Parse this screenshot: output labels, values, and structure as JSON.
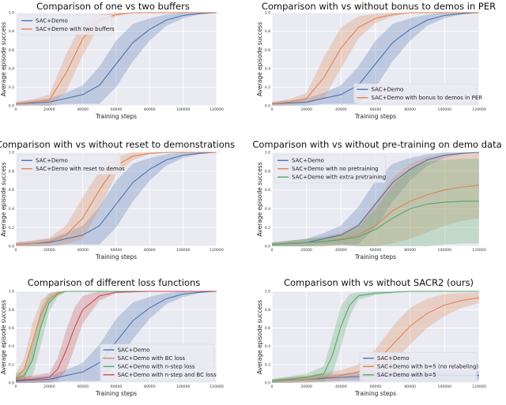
{
  "chart_data": [
    {
      "type": "line",
      "title": "Comparison of one vs two buffers",
      "xlabel": "Training steps",
      "ylabel": "Average episode success",
      "xlim": [
        0,
        120000
      ],
      "ylim": [
        0,
        1
      ],
      "xticks": [
        0,
        20000,
        40000,
        60000,
        80000,
        100000,
        120000
      ],
      "xtick_labels": [
        "0",
        "20000",
        "40000",
        "60000",
        "80000",
        "100000",
        "120000"
      ],
      "yticks": [
        0,
        0.2,
        0.4,
        0.6,
        0.8,
        1.0
      ],
      "ytick_labels": [
        "0.0",
        "0.2",
        "0.4",
        "0.6",
        "0.8",
        "1.0"
      ],
      "legend": "top-left",
      "series": [
        {
          "name": "SAC+Demo",
          "color": "#4c72b0",
          "x": [
            0,
            10000,
            20000,
            30000,
            40000,
            50000,
            60000,
            70000,
            80000,
            90000,
            100000,
            110000,
            120000
          ],
          "y": [
            0.02,
            0.03,
            0.04,
            0.08,
            0.12,
            0.22,
            0.45,
            0.68,
            0.82,
            0.92,
            0.97,
            0.99,
            1.0
          ],
          "spread": [
            0.02,
            0.03,
            0.04,
            0.06,
            0.1,
            0.2,
            0.25,
            0.2,
            0.12,
            0.06,
            0.03,
            0.01,
            0.0
          ]
        },
        {
          "name": "SAC+Demo with two buffers",
          "color": "#dd8452",
          "x": [
            0,
            10000,
            20000,
            30000,
            40000,
            50000,
            60000,
            70000,
            80000,
            90000,
            100000,
            110000,
            120000
          ],
          "y": [
            0.02,
            0.04,
            0.06,
            0.35,
            0.72,
            0.92,
            0.98,
            1.0,
            1.0,
            1.0,
            1.0,
            1.0,
            1.0
          ],
          "spread": [
            0.02,
            0.03,
            0.06,
            0.2,
            0.18,
            0.06,
            0.02,
            0.0,
            0.0,
            0.0,
            0.0,
            0.0,
            0.0
          ]
        }
      ]
    },
    {
      "type": "line",
      "title": "Comparison with vs without bonus to demos in PER",
      "xlabel": "Training steps",
      "ylabel": "Average episode success",
      "xlim": [
        0,
        120000
      ],
      "ylim": [
        0,
        1
      ],
      "xticks": [
        0,
        20000,
        40000,
        60000,
        80000,
        100000,
        120000
      ],
      "xtick_labels": [
        "0",
        "20000",
        "40000",
        "60000",
        "80000",
        "100000",
        "120000"
      ],
      "yticks": [
        0,
        0.2,
        0.4,
        0.6,
        0.8,
        1.0
      ],
      "ytick_labels": [
        "0.0",
        "0.2",
        "0.4",
        "0.6",
        "0.8",
        "1.0"
      ],
      "legend": "bottom-right",
      "series": [
        {
          "name": "SAC+Demo",
          "color": "#4c72b0",
          "x": [
            0,
            10000,
            20000,
            30000,
            40000,
            50000,
            60000,
            70000,
            80000,
            90000,
            100000,
            110000,
            120000
          ],
          "y": [
            0.02,
            0.03,
            0.04,
            0.08,
            0.12,
            0.22,
            0.45,
            0.68,
            0.82,
            0.92,
            0.97,
            0.99,
            1.0
          ],
          "spread": [
            0.02,
            0.03,
            0.04,
            0.06,
            0.1,
            0.2,
            0.25,
            0.2,
            0.12,
            0.06,
            0.03,
            0.01,
            0.0
          ]
        },
        {
          "name": "SAC+Demo with bonus to demos in PER",
          "color": "#dd8452",
          "x": [
            0,
            10000,
            20000,
            30000,
            40000,
            50000,
            60000,
            70000,
            80000,
            90000,
            100000,
            110000,
            120000
          ],
          "y": [
            0.02,
            0.04,
            0.08,
            0.3,
            0.62,
            0.84,
            0.94,
            0.98,
            1.0,
            1.0,
            1.0,
            1.0,
            1.0
          ],
          "spread": [
            0.02,
            0.03,
            0.06,
            0.22,
            0.22,
            0.12,
            0.05,
            0.02,
            0.0,
            0.0,
            0.0,
            0.0,
            0.0
          ]
        }
      ]
    },
    {
      "type": "line",
      "title": "Comparison with vs without reset to demonstrations",
      "xlabel": "Training steps",
      "ylabel": "Average episode success",
      "xlim": [
        0,
        120000
      ],
      "ylim": [
        0,
        1
      ],
      "xticks": [
        0,
        20000,
        40000,
        60000,
        80000,
        100000,
        120000
      ],
      "xtick_labels": [
        "0",
        "20000",
        "40000",
        "60000",
        "80000",
        "100000",
        "120000"
      ],
      "yticks": [
        0,
        0.2,
        0.4,
        0.6,
        0.8,
        1.0
      ],
      "ytick_labels": [
        "0.0",
        "0.2",
        "0.4",
        "0.6",
        "0.8",
        "1.0"
      ],
      "legend": "top-left",
      "series": [
        {
          "name": "SAC+Demo",
          "color": "#4c72b0",
          "x": [
            0,
            10000,
            20000,
            30000,
            40000,
            50000,
            60000,
            70000,
            80000,
            90000,
            100000,
            110000,
            120000
          ],
          "y": [
            0.02,
            0.03,
            0.04,
            0.08,
            0.12,
            0.22,
            0.45,
            0.68,
            0.82,
            0.92,
            0.97,
            0.99,
            1.0
          ],
          "spread": [
            0.02,
            0.03,
            0.04,
            0.06,
            0.1,
            0.2,
            0.25,
            0.2,
            0.12,
            0.06,
            0.03,
            0.01,
            0.0
          ]
        },
        {
          "name": "SAC+Demo with reset to demos",
          "color": "#dd8452",
          "x": [
            0,
            10000,
            20000,
            30000,
            40000,
            50000,
            60000,
            70000,
            80000,
            90000,
            100000,
            110000,
            120000
          ],
          "y": [
            0.02,
            0.03,
            0.05,
            0.12,
            0.3,
            0.6,
            0.86,
            0.96,
            0.99,
            1.0,
            1.0,
            1.0,
            1.0
          ],
          "spread": [
            0.02,
            0.03,
            0.04,
            0.1,
            0.22,
            0.2,
            0.1,
            0.04,
            0.01,
            0.0,
            0.0,
            0.0,
            0.0
          ]
        }
      ]
    },
    {
      "type": "line",
      "title": "Comparison with vs without pre-training on demo data",
      "xlabel": "Training steps",
      "ylabel": "Average episode success",
      "xlim": [
        0,
        120000
      ],
      "ylim": [
        0,
        1
      ],
      "xticks": [
        0,
        20000,
        40000,
        60000,
        80000,
        100000,
        120000
      ],
      "xtick_labels": [
        "0",
        "20000",
        "40000",
        "60000",
        "80000",
        "100000",
        "120000"
      ],
      "yticks": [
        0,
        0.2,
        0.4,
        0.6,
        0.8,
        1.0
      ],
      "ytick_labels": [
        "0.0",
        "0.2",
        "0.4",
        "0.6",
        "0.8",
        "1.0"
      ],
      "legend": "top-left",
      "series": [
        {
          "name": "SAC+Demo",
          "color": "#4c72b0",
          "x": [
            0,
            10000,
            20000,
            30000,
            40000,
            50000,
            60000,
            70000,
            80000,
            90000,
            100000,
            110000,
            120000
          ],
          "y": [
            0.02,
            0.03,
            0.04,
            0.08,
            0.12,
            0.22,
            0.45,
            0.68,
            0.82,
            0.92,
            0.97,
            0.99,
            1.0
          ],
          "spread": [
            0.02,
            0.03,
            0.04,
            0.06,
            0.1,
            0.2,
            0.25,
            0.2,
            0.12,
            0.06,
            0.03,
            0.01,
            0.0
          ]
        },
        {
          "name": "SAC+Demo with no pretraining",
          "color": "#dd8452",
          "x": [
            0,
            10000,
            20000,
            30000,
            40000,
            50000,
            60000,
            70000,
            80000,
            90000,
            100000,
            110000,
            120000
          ],
          "y": [
            0.02,
            0.03,
            0.04,
            0.05,
            0.08,
            0.12,
            0.22,
            0.38,
            0.48,
            0.55,
            0.6,
            0.63,
            0.65
          ],
          "spread": [
            0.02,
            0.03,
            0.04,
            0.05,
            0.07,
            0.12,
            0.25,
            0.35,
            0.4,
            0.4,
            0.38,
            0.36,
            0.35
          ]
        },
        {
          "name": "SAC+Demo with extra pretraining",
          "color": "#55a868",
          "x": [
            0,
            10000,
            20000,
            30000,
            40000,
            50000,
            60000,
            70000,
            80000,
            90000,
            100000,
            110000,
            120000
          ],
          "y": [
            0.02,
            0.03,
            0.04,
            0.05,
            0.07,
            0.1,
            0.18,
            0.3,
            0.4,
            0.45,
            0.47,
            0.48,
            0.48
          ],
          "spread": [
            0.02,
            0.03,
            0.04,
            0.05,
            0.06,
            0.1,
            0.22,
            0.35,
            0.42,
            0.45,
            0.45,
            0.45,
            0.45
          ]
        }
      ]
    },
    {
      "type": "line",
      "title": "Comparison of different loss functions",
      "xlabel": "Training steps",
      "ylabel": "Average episode success",
      "xlim": [
        0,
        120000
      ],
      "ylim": [
        0,
        1
      ],
      "xticks": [
        0,
        20000,
        40000,
        60000,
        80000,
        100000,
        120000
      ],
      "xtick_labels": [
        "0",
        "20000",
        "40000",
        "60000",
        "80000",
        "100000",
        "120000"
      ],
      "yticks": [
        0,
        0.2,
        0.4,
        0.6,
        0.8,
        1.0
      ],
      "ytick_labels": [
        "0.0",
        "0.2",
        "0.4",
        "0.6",
        "0.8",
        "1.0"
      ],
      "legend": "bottom-right",
      "series": [
        {
          "name": "SAC+Demo",
          "color": "#4c72b0",
          "x": [
            0,
            10000,
            20000,
            30000,
            40000,
            50000,
            60000,
            70000,
            80000,
            90000,
            100000,
            110000,
            120000
          ],
          "y": [
            0.02,
            0.03,
            0.04,
            0.08,
            0.12,
            0.22,
            0.45,
            0.68,
            0.82,
            0.92,
            0.97,
            0.99,
            1.0
          ],
          "spread": [
            0.02,
            0.03,
            0.04,
            0.06,
            0.1,
            0.2,
            0.25,
            0.2,
            0.12,
            0.06,
            0.03,
            0.01,
            0.0
          ]
        },
        {
          "name": "SAC+Demo with BC loss",
          "color": "#dd8452",
          "x": [
            0,
            5000,
            10000,
            15000,
            20000,
            25000,
            30000,
            40000,
            60000,
            80000,
            100000,
            120000
          ],
          "y": [
            0.05,
            0.15,
            0.45,
            0.75,
            0.92,
            0.98,
            1.0,
            1.0,
            1.0,
            1.0,
            1.0,
            1.0
          ],
          "spread": [
            0.05,
            0.12,
            0.2,
            0.15,
            0.06,
            0.02,
            0.0,
            0.0,
            0.0,
            0.0,
            0.0,
            0.0
          ]
        },
        {
          "name": "SAC+Demo with n-step loss",
          "color": "#55a868",
          "x": [
            0,
            5000,
            10000,
            15000,
            20000,
            25000,
            30000,
            40000,
            60000,
            80000,
            100000,
            120000
          ],
          "y": [
            0.05,
            0.08,
            0.25,
            0.62,
            0.88,
            0.97,
            1.0,
            1.0,
            1.0,
            1.0,
            1.0,
            1.0
          ],
          "spread": [
            0.05,
            0.06,
            0.18,
            0.2,
            0.1,
            0.03,
            0.0,
            0.0,
            0.0,
            0.0,
            0.0,
            0.0
          ]
        },
        {
          "name": "SAC+Demo with n-step and BC loss",
          "color": "#c44e52",
          "x": [
            0,
            10000,
            20000,
            25000,
            30000,
            35000,
            40000,
            50000,
            60000,
            80000,
            100000,
            120000
          ],
          "y": [
            0.03,
            0.04,
            0.06,
            0.15,
            0.35,
            0.6,
            0.8,
            0.95,
            0.99,
            1.0,
            1.0,
            1.0
          ],
          "spread": [
            0.03,
            0.04,
            0.05,
            0.12,
            0.22,
            0.22,
            0.15,
            0.05,
            0.01,
            0.0,
            0.0,
            0.0
          ]
        }
      ]
    },
    {
      "type": "line",
      "title": "Comparison with vs without SACR2 (ours)",
      "xlabel": "Training steps",
      "ylabel": "Average episode success",
      "xlim": [
        0,
        120000
      ],
      "ylim": [
        0,
        1
      ],
      "xticks": [
        0,
        20000,
        40000,
        60000,
        80000,
        100000,
        120000
      ],
      "xtick_labels": [
        "0",
        "20000",
        "40000",
        "60000",
        "80000",
        "100000",
        "120000"
      ],
      "yticks": [
        0,
        0.2,
        0.4,
        0.6,
        0.8,
        1.0
      ],
      "ytick_labels": [
        "0.0",
        "0.2",
        "0.4",
        "0.6",
        "0.8",
        "1.0"
      ],
      "legend": "bottom-right",
      "series": [
        {
          "name": "SAC+Demo",
          "color": "#4c72b0",
          "x": [
            0,
            10000,
            20000,
            30000,
            40000,
            50000,
            60000,
            70000,
            80000,
            90000,
            100000,
            110000,
            120000
          ],
          "y": [
            0.02,
            0.03,
            0.04,
            0.05,
            0.06,
            0.07,
            0.08,
            0.08,
            0.08,
            0.08,
            0.08,
            0.08,
            0.08
          ],
          "spread": [
            0.02,
            0.03,
            0.03,
            0.04,
            0.04,
            0.05,
            0.05,
            0.05,
            0.05,
            0.05,
            0.05,
            0.05,
            0.05
          ]
        },
        {
          "name": "SAC+Demo with b=5 (no relabeling)",
          "color": "#dd8452",
          "x": [
            0,
            10000,
            20000,
            30000,
            40000,
            50000,
            60000,
            70000,
            80000,
            90000,
            100000,
            110000,
            120000
          ],
          "y": [
            0.02,
            0.03,
            0.04,
            0.06,
            0.08,
            0.12,
            0.22,
            0.42,
            0.62,
            0.76,
            0.85,
            0.9,
            0.93
          ],
          "spread": [
            0.02,
            0.03,
            0.04,
            0.05,
            0.06,
            0.08,
            0.15,
            0.2,
            0.2,
            0.16,
            0.12,
            0.08,
            0.06
          ]
        },
        {
          "name": "SAC+Demo with b=5",
          "color": "#55a868",
          "x": [
            0,
            10000,
            20000,
            30000,
            35000,
            40000,
            45000,
            50000,
            60000,
            80000,
            100000,
            120000
          ],
          "y": [
            0.02,
            0.04,
            0.06,
            0.1,
            0.3,
            0.62,
            0.85,
            0.95,
            0.98,
            1.0,
            1.0,
            1.0
          ],
          "spread": [
            0.02,
            0.03,
            0.04,
            0.08,
            0.2,
            0.22,
            0.12,
            0.04,
            0.02,
            0.0,
            0.0,
            0.0
          ]
        }
      ]
    }
  ]
}
